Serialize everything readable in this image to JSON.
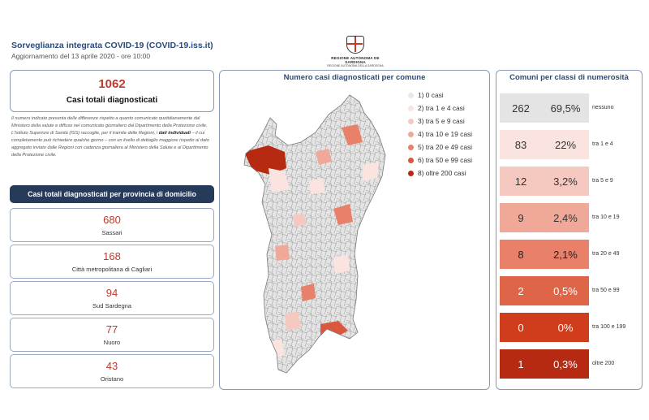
{
  "header": {
    "title": "Sorveglianza integrata COVID-19 (COVID-19.iss.it)",
    "subtitle": "Aggiornamento del 13 aprile 2020 - ore 10:00"
  },
  "logo": {
    "line1": "REGIONE AUTONOMA DE SARDIGNA",
    "line2": "REGIONE AUTONOMA DELLA SARDEGNA"
  },
  "total": {
    "value": "1062",
    "label": "Casi totali diagnosticati"
  },
  "note": {
    "p1": "Il numero indicato presenta delle differenze rispetto a quanto comunicato quotidianamente dal Ministero della salute e diffuso nel comunicato giornaliero dal Dipartimento della Protezione civile.",
    "p2_a": "L'Istituto Superiore di Sanità (ISS) raccoglie, per il tramite delle Regioni, i ",
    "p2_b": "dati individuali",
    "p2_c": " – il cui completamento può richiedere qualche giorno – con un livello di dettaglio maggiore rispetto al dato aggregato inviato dalle Regioni con cadenza giornaliera al Ministero della Salute e al Dipartimento della Protezione civile."
  },
  "provinces": {
    "header": "Casi totali diagnosticati per provincia di domicilio",
    "items": [
      {
        "value": "680",
        "name": "Sassari"
      },
      {
        "value": "168",
        "name": "Città metropolitana di Cagliari"
      },
      {
        "value": "94",
        "name": "Sud Sardegna"
      },
      {
        "value": "77",
        "name": "Nuoro"
      },
      {
        "value": "43",
        "name": "Oristano"
      }
    ]
  },
  "map": {
    "title": "Numero casi diagnosticati per comune",
    "legend": [
      {
        "label": "1) 0 casi",
        "color": "#e8e8e8"
      },
      {
        "label": "2) tra 1 e 4 casi",
        "color": "#fbe3df"
      },
      {
        "label": "3) tra 5 e 9 casi",
        "color": "#f6c9c0"
      },
      {
        "label": "4) tra 10 e 19 casi",
        "color": "#f0a898"
      },
      {
        "label": "5) tra 20 e 49 casi",
        "color": "#e8806a"
      },
      {
        "label": "6) tra 50 e 99 casi",
        "color": "#d9583e"
      },
      {
        "label": "8) oltre 200 casi",
        "color": "#b52a10"
      }
    ]
  },
  "classes": {
    "title": "Comuni per classi di numerosità",
    "rows": [
      {
        "count": "262",
        "pct": "69,5%",
        "label": "nessuno",
        "bg": "#e4e4e4",
        "fg": "#333333"
      },
      {
        "count": "83",
        "pct": "22%",
        "label": "tra 1 e 4",
        "bg": "#fbe3df",
        "fg": "#333333"
      },
      {
        "count": "12",
        "pct": "3,2%",
        "label": "tra 5 e 9",
        "bg": "#f6c9c0",
        "fg": "#333333"
      },
      {
        "count": "9",
        "pct": "2,4%",
        "label": "tra 10 e 19",
        "bg": "#f0a898",
        "fg": "#333333"
      },
      {
        "count": "8",
        "pct": "2,1%",
        "label": "tra 20 e 49",
        "bg": "#e8806a",
        "fg": "#222222"
      },
      {
        "count": "2",
        "pct": "0,5%",
        "label": "tra 50 e 99",
        "bg": "#df6548",
        "fg": "#ffffff"
      },
      {
        "count": "0",
        "pct": "0%",
        "label": "tra 100 e 199",
        "bg": "#cf3d1c",
        "fg": "#ffffff"
      },
      {
        "count": "1",
        "pct": "0,3%",
        "label": "oltre 200",
        "bg": "#b52a10",
        "fg": "#ffffff"
      }
    ]
  }
}
